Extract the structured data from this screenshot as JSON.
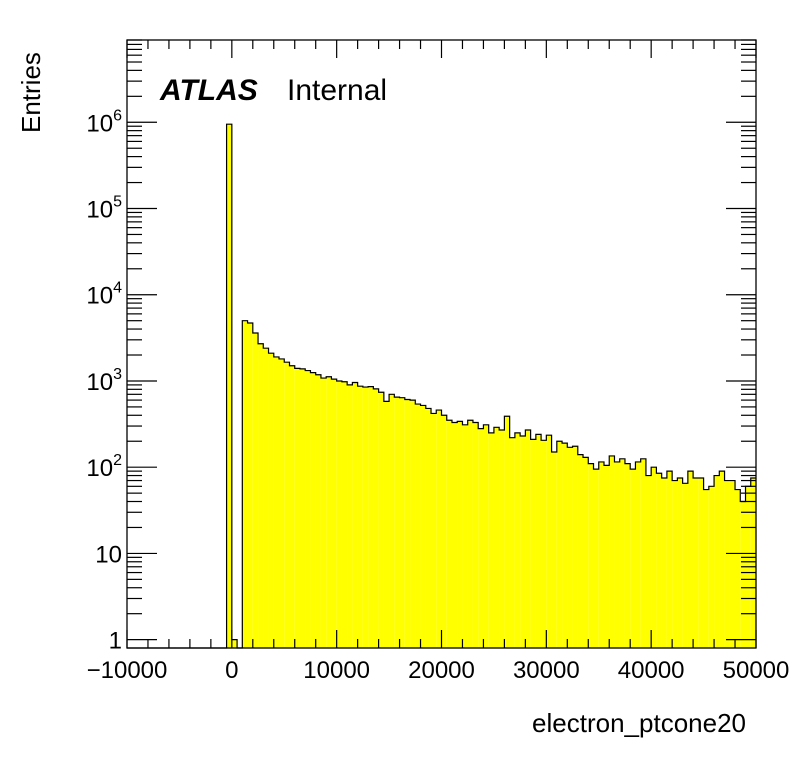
{
  "chart_data": {
    "type": "bar",
    "subtype": "histogram",
    "title": "",
    "xlabel": "electron_ptcone20",
    "ylabel": "Entries",
    "xlim": [
      -10000,
      50000
    ],
    "ylim": [
      0.8,
      9000000
    ],
    "yscale": "log",
    "grid": false,
    "legend": "none",
    "fill_color": "#ffff00",
    "line_color": "#000000",
    "label": {
      "experiment": "ATLAS",
      "status": "Internal"
    },
    "x_tick_labels": [
      "−10000",
      "0",
      "10000",
      "20000",
      "30000",
      "40000",
      "50000"
    ],
    "x_tick_values": [
      -10000,
      0,
      10000,
      20000,
      30000,
      40000,
      50000
    ],
    "y_tick_labels": [
      {
        "value": 1,
        "base": "1",
        "exp": ""
      },
      {
        "value": 10,
        "base": "10",
        "exp": ""
      },
      {
        "value": 100,
        "base": "10",
        "exp": "2"
      },
      {
        "value": 1000,
        "base": "10",
        "exp": "3"
      },
      {
        "value": 10000,
        "base": "10",
        "exp": "4"
      },
      {
        "value": 100000,
        "base": "10",
        "exp": "5"
      },
      {
        "value": 1000000,
        "base": "10",
        "exp": "6"
      }
    ],
    "bin_width": 500,
    "bins_x_start": [
      -10000,
      -9500,
      -9000,
      -8500,
      -8000,
      -7500,
      -7000,
      -6500,
      -6000,
      -5500,
      -5000,
      -4500,
      -4000,
      -3500,
      -3000,
      -2500,
      -2000,
      -1500,
      -1000,
      -500,
      0,
      500,
      1000,
      1500,
      2000,
      2500,
      3000,
      3500,
      4000,
      4500,
      5000,
      5500,
      6000,
      6500,
      7000,
      7500,
      8000,
      8500,
      9000,
      9500,
      10000,
      10500,
      11000,
      11500,
      12000,
      12500,
      13000,
      13500,
      14000,
      14500,
      15000,
      15500,
      16000,
      16500,
      17000,
      17500,
      18000,
      18500,
      19000,
      19500,
      20000,
      20500,
      21000,
      21500,
      22000,
      22500,
      23000,
      23500,
      24000,
      24500,
      25000,
      25500,
      26000,
      26500,
      27000,
      27500,
      28000,
      28500,
      29000,
      29500,
      30000,
      30500,
      31000,
      31500,
      32000,
      32500,
      33000,
      33500,
      34000,
      34500,
      35000,
      35500,
      36000,
      36500,
      37000,
      37500,
      38000,
      38500,
      39000,
      39500,
      40000,
      40500,
      41000,
      41500,
      42000,
      42500,
      43000,
      43500,
      44000,
      44500,
      45000,
      45500,
      46000,
      46500,
      47000,
      47500,
      48000,
      48500,
      49000,
      49500
    ],
    "values": [
      0,
      0,
      0,
      0,
      0,
      0,
      0,
      0,
      0,
      0,
      0,
      0,
      0,
      0,
      0,
      0,
      0,
      0,
      0,
      950000,
      1,
      0,
      5000,
      4700,
      3600,
      2700,
      2400,
      2100,
      1900,
      1800,
      1650,
      1500,
      1400,
      1380,
      1320,
      1250,
      1180,
      1080,
      1120,
      1050,
      1000,
      980,
      900,
      960,
      870,
      850,
      860,
      810,
      740,
      580,
      700,
      650,
      640,
      610,
      600,
      540,
      520,
      480,
      420,
      460,
      400,
      350,
      330,
      340,
      310,
      350,
      330,
      280,
      310,
      250,
      290,
      270,
      390,
      220,
      250,
      230,
      270,
      210,
      240,
      205,
      235,
      150,
      200,
      190,
      170,
      175,
      140,
      130,
      110,
      95,
      115,
      105,
      135,
      115,
      125,
      110,
      95,
      115,
      125,
      80,
      100,
      85,
      75,
      90,
      70,
      75,
      65,
      90,
      75,
      75,
      55,
      60,
      80,
      90,
      70,
      70,
      55,
      40,
      60,
      75
    ]
  }
}
